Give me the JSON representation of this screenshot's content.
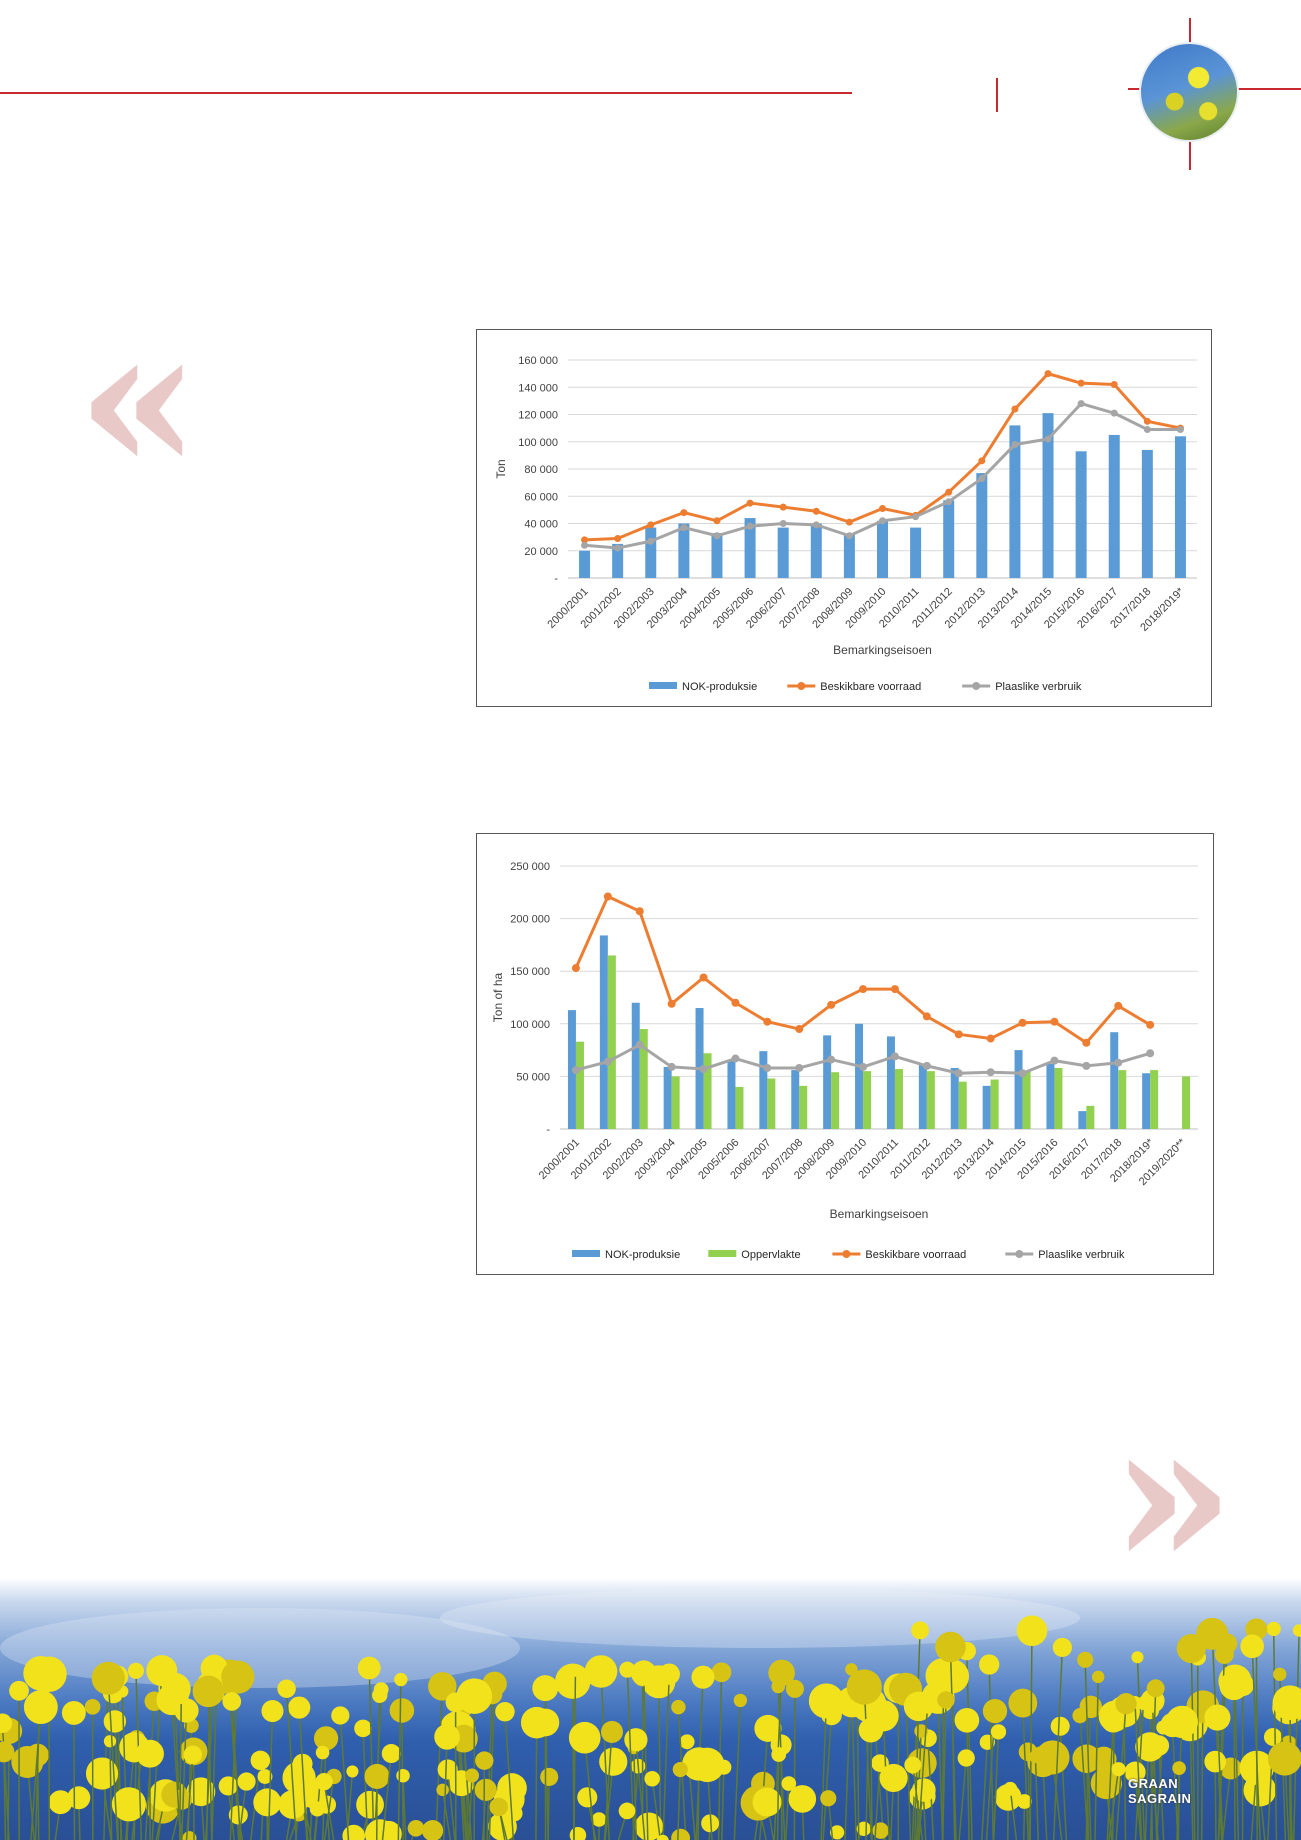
{
  "colors": {
    "accent_red": "#c8282e",
    "blue": "#5b9bd5",
    "orange": "#ed7d31",
    "gray": "#a5a5a5",
    "green": "#92d050"
  },
  "logo": {
    "line1": "GRAAN",
    "line2": "SAGRAIN"
  },
  "chart_data": [
    {
      "type": "bar",
      "xlabel": "Bemarkingseisoen",
      "ylabel": "Ton",
      "ylim": [
        0,
        160000
      ],
      "yticks": [
        "-",
        "20 000",
        "40 000",
        "60 000",
        "80 000",
        "100 000",
        "120 000",
        "140 000",
        "160 000"
      ],
      "ytick_values": [
        0,
        20000,
        40000,
        60000,
        80000,
        100000,
        120000,
        140000,
        160000
      ],
      "grid": true,
      "legend_position": "bottom",
      "categories": [
        "2000/2001",
        "2001/2002",
        "2002/2003",
        "2003/2004",
        "2004/2005",
        "2005/2006",
        "2006/2007",
        "2007/2008",
        "2008/2009",
        "2009/2010",
        "2010/2011",
        "2011/2012",
        "2012/2013",
        "2013/2014",
        "2014/2015",
        "2015/2016",
        "2016/2017",
        "2017/2018",
        "2018/2019*"
      ],
      "series": [
        {
          "name": "NOK-produksie",
          "kind": "bar",
          "color": "#5b9bd5",
          "values": [
            20000,
            25000,
            37000,
            40000,
            33000,
            44000,
            37000,
            40000,
            32000,
            42000,
            37000,
            57000,
            77000,
            112000,
            121000,
            93000,
            105000,
            94000,
            104000
          ]
        },
        {
          "name": "Beskikbare voorraad",
          "kind": "line",
          "color": "#ed7d31",
          "values": [
            28000,
            29000,
            39000,
            48000,
            42000,
            55000,
            52000,
            49000,
            41000,
            51000,
            46000,
            63000,
            86000,
            124000,
            150000,
            143000,
            142000,
            115000,
            110000
          ]
        },
        {
          "name": "Plaaslike verbruik",
          "kind": "line",
          "color": "#a5a5a5",
          "values": [
            24000,
            22000,
            27000,
            37000,
            31000,
            38000,
            40000,
            39000,
            31000,
            42000,
            45000,
            56000,
            73000,
            98000,
            102000,
            128000,
            121000,
            109000,
            109000
          ]
        }
      ]
    },
    {
      "type": "bar",
      "xlabel": "Bemarkingseisoen",
      "ylabel": "Ton of ha",
      "ylim": [
        0,
        250000
      ],
      "yticks": [
        "-",
        "50 000",
        "100 000",
        "150 000",
        "200 000",
        "250 000"
      ],
      "ytick_values": [
        0,
        50000,
        100000,
        150000,
        200000,
        250000
      ],
      "grid": true,
      "legend_position": "bottom",
      "categories": [
        "2000/2001",
        "2001/2002",
        "2002/2003",
        "2003/2004",
        "2004/2005",
        "2005/2006",
        "2006/2007",
        "2007/2008",
        "2008/2009",
        "2009/2010",
        "2010/2011",
        "2011/2012",
        "2012/2013",
        "2013/2014",
        "2014/2015",
        "2015/2016",
        "2016/2017",
        "2017/2018",
        "2018/2019*",
        "2019/2020**"
      ],
      "series": [
        {
          "name": "NOK-produksie",
          "kind": "bar",
          "color": "#5b9bd5",
          "values": [
            113000,
            184000,
            120000,
            59000,
            115000,
            66000,
            74000,
            56000,
            89000,
            100000,
            88000,
            62000,
            58000,
            41000,
            75000,
            62000,
            17000,
            92000,
            53000,
            null
          ]
        },
        {
          "name": "Oppervlakte",
          "kind": "bar",
          "color": "#92d050",
          "values": [
            83000,
            165000,
            95000,
            50000,
            72000,
            40000,
            48000,
            41000,
            54000,
            55000,
            57000,
            55000,
            45000,
            47000,
            55000,
            58000,
            22000,
            56000,
            56000,
            50000
          ]
        },
        {
          "name": "Beskikbare voorraad",
          "kind": "line",
          "color": "#ed7d31",
          "values": [
            153000,
            221000,
            207000,
            119000,
            144000,
            120000,
            102000,
            95000,
            118000,
            133000,
            133000,
            107000,
            90000,
            86000,
            101000,
            102000,
            82000,
            117000,
            99000,
            null
          ]
        },
        {
          "name": "Plaaslike verbruik",
          "kind": "line",
          "color": "#a5a5a5",
          "values": [
            56000,
            64000,
            80000,
            59000,
            57000,
            67000,
            58000,
            58000,
            66000,
            59000,
            69000,
            60000,
            53000,
            54000,
            53000,
            65000,
            60000,
            63000,
            72000,
            null
          ]
        }
      ]
    }
  ]
}
